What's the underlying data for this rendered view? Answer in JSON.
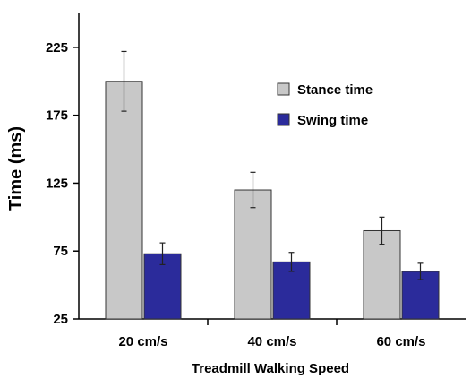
{
  "chart_data": {
    "type": "bar",
    "title": "",
    "xlabel": "Treadmill Walking Speed",
    "ylabel": "Time (ms)",
    "categories": [
      "20 cm/s",
      "40 cm/s",
      "60 cm/s"
    ],
    "ylim": [
      25,
      250
    ],
    "yticks": [
      25,
      75,
      125,
      175,
      225
    ],
    "grid": false,
    "legend_position": "top-right",
    "series": [
      {
        "name": "Stance time",
        "color": "#c8c8c8",
        "values": [
          200,
          120,
          90
        ],
        "errors": [
          22,
          13,
          10
        ]
      },
      {
        "name": "Swing time",
        "color": "#2b2b9b",
        "values": [
          73,
          67,
          60
        ],
        "errors": [
          8,
          7,
          6
        ]
      }
    ]
  }
}
